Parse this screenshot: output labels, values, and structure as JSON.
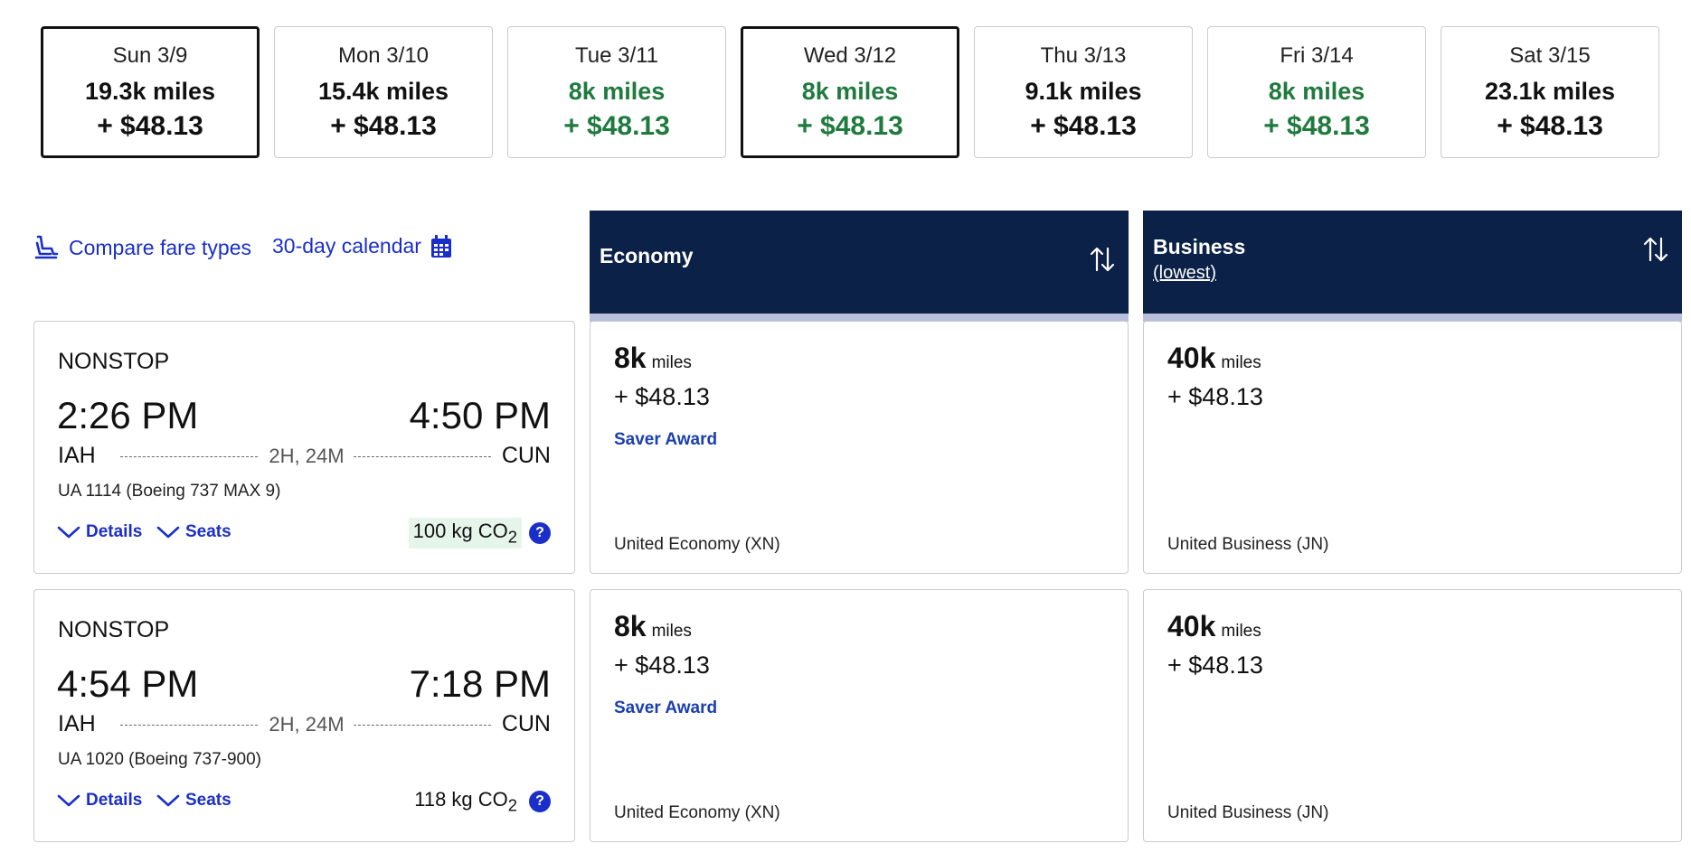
{
  "dates": [
    {
      "label": "Sun 3/9",
      "miles": "19.3k miles",
      "cash": "+ $48.13",
      "selected": true,
      "green": false
    },
    {
      "label": "Mon 3/10",
      "miles": "15.4k miles",
      "cash": "+ $48.13",
      "selected": false,
      "green": false
    },
    {
      "label": "Tue 3/11",
      "miles": "8k miles",
      "cash": "+ $48.13",
      "selected": false,
      "green": true
    },
    {
      "label": "Wed 3/12",
      "miles": "8k miles",
      "cash": "+ $48.13",
      "selected": true,
      "green": true
    },
    {
      "label": "Thu 3/13",
      "miles": "9.1k miles",
      "cash": "+ $48.13",
      "selected": false,
      "green": false
    },
    {
      "label": "Fri 3/14",
      "miles": "8k miles",
      "cash": "+ $48.13",
      "selected": false,
      "green": true
    },
    {
      "label": "Sat 3/15",
      "miles": "23.1k miles",
      "cash": "+ $48.13",
      "selected": false,
      "green": false
    }
  ],
  "colors": {
    "green": "#1f7a3e",
    "link": "#1a2fc9",
    "header": "#0b2147",
    "header_bar": "#b8bedc"
  },
  "toolbar": {
    "compare_label": "Compare fare types",
    "compare_icon": "seat-icon",
    "calendar_label": "30-day calendar",
    "calendar_icon": "calendar-icon"
  },
  "cabins": {
    "economy": {
      "title": "Economy",
      "sort_icon": "sort-arrows-icon"
    },
    "business": {
      "title": "Business",
      "subtitle": "(lowest)",
      "sort_icon": "sort-arrows-icon"
    }
  },
  "flights": [
    {
      "stops": "NONSTOP",
      "dep_time": "2:26 PM",
      "arr_time": "4:50 PM",
      "origin": "IAH",
      "destination": "CUN",
      "duration": "2H, 24M",
      "flight_number": "UA 1114 (Boeing 737 MAX 9)",
      "details_label": "Details",
      "seats_label": "Seats",
      "co2_value": "100 kg CO",
      "co2_sub": "2",
      "co2_low": true,
      "economy": {
        "miles": "8k",
        "miles_unit": "miles",
        "cash": "+ $48.13",
        "award": "Saver Award",
        "fare_class": "United Economy (XN)"
      },
      "business": {
        "miles": "40k",
        "miles_unit": "miles",
        "cash": "+ $48.13",
        "award": "",
        "fare_class": "United Business (JN)"
      }
    },
    {
      "stops": "NONSTOP",
      "dep_time": "4:54 PM",
      "arr_time": "7:18 PM",
      "origin": "IAH",
      "destination": "CUN",
      "duration": "2H, 24M",
      "flight_number": "UA 1020 (Boeing 737-900)",
      "details_label": "Details",
      "seats_label": "Seats",
      "co2_value": "118 kg CO",
      "co2_sub": "2",
      "co2_low": false,
      "economy": {
        "miles": "8k",
        "miles_unit": "miles",
        "cash": "+ $48.13",
        "award": "Saver Award",
        "fare_class": "United Economy (XN)"
      },
      "business": {
        "miles": "40k",
        "miles_unit": "miles",
        "cash": "+ $48.13",
        "award": "",
        "fare_class": "United Business (JN)"
      }
    }
  ],
  "help_glyph": "?"
}
